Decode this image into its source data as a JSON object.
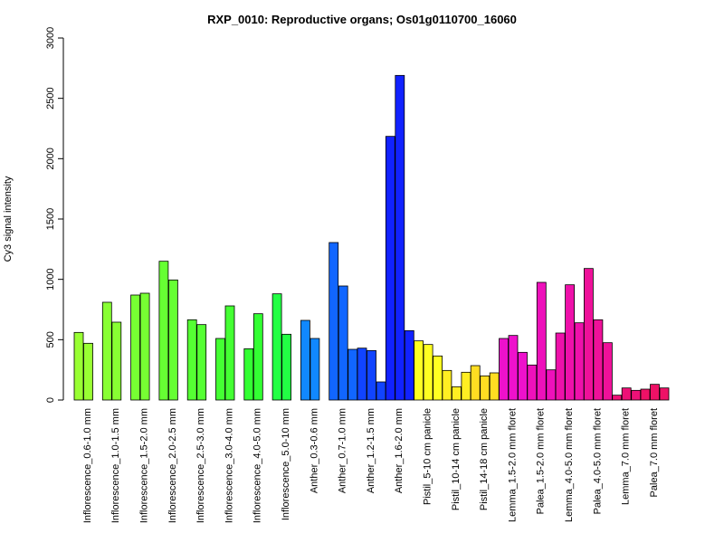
{
  "chart_data": {
    "type": "bar",
    "title": "RXP_0010: Reproductive organs; Os01g0110700_16060",
    "xlabel": "",
    "ylabel": "Cy3 signal intensity",
    "ylim": [
      0,
      3000
    ],
    "yticks": [
      "0",
      "500",
      "1000",
      "1500",
      "2000",
      "2500",
      "3000"
    ],
    "grid": false,
    "groups": [
      {
        "label": "Inflorescence_0.6-1.0 mm",
        "color": "#99ff33",
        "values": [
          560,
          470
        ]
      },
      {
        "label": "Inflorescence_1.0-1.5 mm",
        "color": "#88ff33",
        "values": [
          810,
          645
        ]
      },
      {
        "label": "Inflorescence_1.5-2.0 mm",
        "color": "#77ff33",
        "values": [
          870,
          885
        ]
      },
      {
        "label": "Inflorescence_2.0-2.5 mm",
        "color": "#66ff33",
        "values": [
          1150,
          995
        ]
      },
      {
        "label": "Inflorescence_2.5-3.0 mm",
        "color": "#55ff33",
        "values": [
          665,
          625
        ]
      },
      {
        "label": "Inflorescence_3.0-4.0 mm",
        "color": "#44ff33",
        "values": [
          510,
          780
        ]
      },
      {
        "label": "Inflorescence_4.0-5.0 mm",
        "color": "#33ff33",
        "values": [
          425,
          715
        ]
      },
      {
        "label": "Inflorescence_5.0-10 mm",
        "color": "#22ff44",
        "values": [
          880,
          545
        ]
      },
      {
        "label": "Anther_0.3-0.6 mm",
        "color": "#1188ff",
        "values": [
          660,
          510
        ]
      },
      {
        "label": "Anther_0.7-1.0 mm",
        "color": "#1166ff",
        "values": [
          1305,
          945,
          420
        ]
      },
      {
        "label": "Anther_1.2-1.5 mm",
        "color": "#1144ff",
        "values": [
          430,
          410,
          150
        ]
      },
      {
        "label": "Anther_1.6-2.0 mm",
        "color": "#1122ff",
        "values": [
          2185,
          2690,
          575
        ]
      },
      {
        "label": "Pistil_5-10 cm panicle",
        "color": "#ffff22",
        "values": [
          490,
          460,
          365
        ]
      },
      {
        "label": "Pistil_10-14 cm panicle",
        "color": "#ffee22",
        "values": [
          245,
          110,
          230
        ]
      },
      {
        "label": "Pistil_14-18 cm panicle",
        "color": "#ffdd22",
        "values": [
          285,
          200,
          225
        ]
      },
      {
        "label": "Lemma_1.5-2.0 mm floret",
        "color": "#ee11cc",
        "values": [
          510,
          535,
          395
        ]
      },
      {
        "label": "Palea_1.5-2.0 mm floret",
        "color": "#ee11bb",
        "values": [
          290,
          975,
          250
        ]
      },
      {
        "label": "Lemma_4.0-5.0 mm floret",
        "color": "#ee11aa",
        "values": [
          555,
          955,
          640
        ]
      },
      {
        "label": "Palea_4.0-5.0 mm floret",
        "color": "#ee1199",
        "values": [
          1090,
          665,
          475
        ]
      },
      {
        "label": "Lemma_7.0 mm floret",
        "color": "#ee1177",
        "values": [
          40,
          100,
          80
        ]
      },
      {
        "label": "Palea_7.0 mm floret",
        "color": "#ee1166",
        "values": [
          90,
          130,
          100
        ]
      }
    ]
  }
}
